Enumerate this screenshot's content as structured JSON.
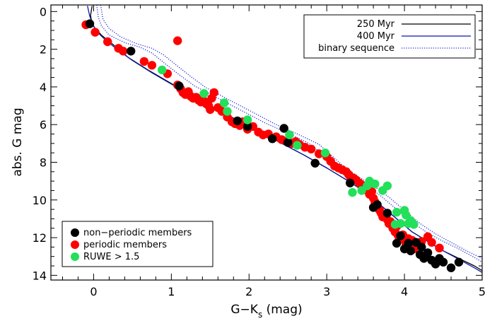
{
  "chart_data": {
    "type": "scatter",
    "xlabel_main": "G−K",
    "xlabel_sub": "s",
    "xlabel_tail": " (mag)",
    "ylabel": "abs. G mag",
    "xlim": [
      -0.55,
      5.0
    ],
    "ylim": [
      14.25,
      -0.35
    ],
    "y_inverted": true,
    "x_ticks": [
      0,
      1,
      2,
      3,
      4,
      5
    ],
    "y_ticks": [
      0,
      2,
      4,
      6,
      8,
      10,
      12,
      14
    ],
    "x_tick_labels": [
      "0",
      "1",
      "2",
      "3",
      "4",
      "5"
    ],
    "y_tick_labels": [
      "0",
      "2",
      "4",
      "6",
      "8",
      "10",
      "12",
      "14"
    ],
    "grid": false,
    "colors": {
      "isochrone_250": "#000000",
      "isochrone_400": "#0a1aa8",
      "binary": "#1e2bd0",
      "non_periodic": "#000000",
      "periodic": "#ff0000",
      "ruwe": "#22e05a"
    },
    "lines_legend": {
      "placement": "top-right",
      "entries": [
        "250 Myr",
        "400 Myr",
        "binary sequence"
      ]
    },
    "points_legend": {
      "placement": "bottom-left",
      "entries": [
        "non−periodic members",
        "periodic members",
        "RUWE > 1.5"
      ]
    },
    "lines": [
      {
        "name": "250 Myr",
        "style": "solid",
        "x": [
          -0.02,
          -0.04,
          -0.03,
          0.0,
          0.1,
          0.25,
          0.45,
          0.7,
          0.95,
          1.2,
          1.5,
          1.8,
          2.1,
          2.4,
          2.7,
          3.0,
          3.3,
          3.5,
          3.7,
          3.9,
          4.1,
          4.3,
          4.5,
          4.7,
          4.9,
          5.0
        ],
        "y": [
          -0.3,
          0.2,
          0.45,
          0.8,
          1.25,
          1.75,
          2.45,
          3.1,
          3.7,
          4.3,
          5.0,
          5.65,
          6.3,
          6.95,
          7.6,
          8.3,
          9.05,
          9.6,
          10.3,
          11.0,
          11.7,
          12.2,
          12.7,
          13.1,
          13.5,
          13.75
        ]
      },
      {
        "name": "400 Myr",
        "style": "solid",
        "x": [
          -0.08,
          -0.05,
          -0.01,
          0.05,
          0.15,
          0.3,
          0.5,
          0.75,
          1.0,
          1.25,
          1.5,
          1.8,
          2.1,
          2.4,
          2.7,
          3.0,
          3.3,
          3.5,
          3.7,
          3.9,
          4.1,
          4.3,
          4.5,
          4.7,
          4.9,
          5.0
        ],
        "y": [
          -0.3,
          0.25,
          0.7,
          1.1,
          1.5,
          2.0,
          2.6,
          3.25,
          3.85,
          4.45,
          5.0,
          5.65,
          6.3,
          6.95,
          7.6,
          8.3,
          9.05,
          9.6,
          10.3,
          11.0,
          11.7,
          12.2,
          12.7,
          13.15,
          13.6,
          13.85
        ]
      },
      {
        "name": "binary sequence",
        "style": "dotted",
        "x": [
          0.04,
          0.06,
          0.1,
          0.2,
          0.4,
          0.6,
          0.75,
          0.9,
          1.1,
          1.3,
          1.6,
          1.9,
          2.2,
          2.5,
          2.75,
          2.95,
          3.1,
          3.3,
          3.5,
          3.7,
          3.9,
          4.1,
          4.3,
          4.5,
          4.7,
          4.9,
          5.0
        ],
        "y": [
          -0.35,
          0.3,
          0.75,
          1.25,
          1.65,
          1.9,
          2.2,
          2.7,
          3.35,
          3.95,
          4.6,
          5.25,
          5.9,
          6.45,
          6.95,
          7.55,
          8.1,
          8.7,
          9.2,
          9.8,
          10.5,
          11.2,
          11.75,
          12.2,
          12.6,
          13.05,
          13.3
        ]
      },
      {
        "name": "binary sequence (offset)",
        "style": "dotted",
        "x": [
          0.09,
          0.12,
          0.2,
          0.35,
          0.55,
          0.75,
          0.9,
          1.05,
          1.25,
          1.45,
          1.75,
          2.05,
          2.35,
          2.65,
          2.9,
          3.05,
          3.2,
          3.4,
          3.6,
          3.8,
          4.0,
          4.2,
          4.4,
          4.6,
          4.8,
          5.0
        ],
        "y": [
          -0.35,
          0.4,
          0.9,
          1.35,
          1.7,
          1.95,
          2.3,
          2.8,
          3.45,
          4.05,
          4.7,
          5.35,
          6.0,
          6.55,
          7.05,
          7.6,
          8.15,
          8.75,
          9.25,
          9.85,
          10.55,
          11.25,
          11.8,
          12.25,
          12.7,
          13.1
        ]
      }
    ],
    "series": [
      {
        "name": "non−periodic members",
        "color": "#000000",
        "x": [
          -0.05,
          0.48,
          1.1,
          1.85,
          1.98,
          2.3,
          2.45,
          2.5,
          2.85,
          3.3,
          3.6,
          3.65,
          3.78,
          3.9,
          3.95,
          4.0,
          4.05,
          4.08,
          4.15,
          4.2,
          4.22,
          4.25,
          4.28,
          4.3,
          4.35,
          4.4,
          4.45,
          4.5,
          4.6,
          4.7
        ],
        "y": [
          0.65,
          2.1,
          3.95,
          5.8,
          6.1,
          6.75,
          6.2,
          6.95,
          8.05,
          9.1,
          10.4,
          10.25,
          10.7,
          12.3,
          11.9,
          12.6,
          12.3,
          12.7,
          12.25,
          12.9,
          12.5,
          13.1,
          13.0,
          12.8,
          13.2,
          13.4,
          13.1,
          13.3,
          13.6,
          13.3
        ]
      },
      {
        "name": "periodic members",
        "color": "#ff0000",
        "x": [
          -0.1,
          0.02,
          0.18,
          0.32,
          0.38,
          0.65,
          0.75,
          0.95,
          1.08,
          1.12,
          1.15,
          1.18,
          1.22,
          1.25,
          1.28,
          1.32,
          1.35,
          1.38,
          1.42,
          1.45,
          1.48,
          1.5,
          1.52,
          1.55,
          1.6,
          1.65,
          1.72,
          1.78,
          1.82,
          1.88,
          1.92,
          1.98,
          2.05,
          2.12,
          2.18,
          2.25,
          2.35,
          2.42,
          2.5,
          2.55,
          2.6,
          2.65,
          2.72,
          2.8,
          2.9,
          3.0,
          3.05,
          3.1,
          3.15,
          3.2,
          3.25,
          3.28,
          3.3,
          3.35,
          3.38,
          3.42,
          3.45,
          3.5,
          3.52,
          3.55,
          3.58,
          3.6,
          3.62,
          3.65,
          3.68,
          3.7,
          3.72,
          3.75,
          3.78,
          3.8,
          3.82,
          3.85,
          3.88,
          3.9,
          3.92,
          3.95,
          3.98,
          4.0,
          4.02,
          4.05,
          4.08,
          4.1,
          4.12,
          4.15,
          4.22,
          4.3,
          4.35,
          4.45,
          1.08
        ],
        "y": [
          0.7,
          1.1,
          1.6,
          1.95,
          2.1,
          2.65,
          2.85,
          3.3,
          3.9,
          4.1,
          4.3,
          4.4,
          4.25,
          4.5,
          4.6,
          4.55,
          4.7,
          4.8,
          4.75,
          4.9,
          5.0,
          5.2,
          4.6,
          4.3,
          5.1,
          5.3,
          5.6,
          5.85,
          5.95,
          6.05,
          5.85,
          6.25,
          6.1,
          6.4,
          6.55,
          6.5,
          6.65,
          6.8,
          6.85,
          7.0,
          6.9,
          7.05,
          7.2,
          7.3,
          7.55,
          7.7,
          7.95,
          8.2,
          8.3,
          8.4,
          8.5,
          8.65,
          8.75,
          8.85,
          8.95,
          9.1,
          9.2,
          9.35,
          9.5,
          9.7,
          9.55,
          9.9,
          10.1,
          10.3,
          10.55,
          10.7,
          10.9,
          10.8,
          11.05,
          11.25,
          11.15,
          11.5,
          11.7,
          11.4,
          11.9,
          12.0,
          11.85,
          12.15,
          12.35,
          12.05,
          12.45,
          12.15,
          12.6,
          12.4,
          12.2,
          11.95,
          12.25,
          12.55,
          1.55
        ]
      },
      {
        "name": "RUWE > 1.5",
        "color": "#22e05a",
        "x": [
          0.88,
          1.42,
          1.68,
          1.72,
          1.98,
          2.52,
          2.62,
          2.98,
          3.33,
          3.45,
          3.52,
          3.55,
          3.62,
          3.72,
          3.78,
          3.88,
          3.9,
          3.95,
          4.0,
          4.02,
          4.05,
          4.08,
          4.12
        ],
        "y": [
          3.1,
          4.35,
          4.85,
          5.3,
          5.75,
          6.55,
          7.1,
          7.5,
          9.6,
          9.5,
          9.25,
          9.0,
          9.15,
          9.5,
          9.25,
          11.3,
          10.65,
          11.25,
          10.55,
          10.8,
          11.25,
          11.1,
          11.3
        ]
      }
    ]
  }
}
